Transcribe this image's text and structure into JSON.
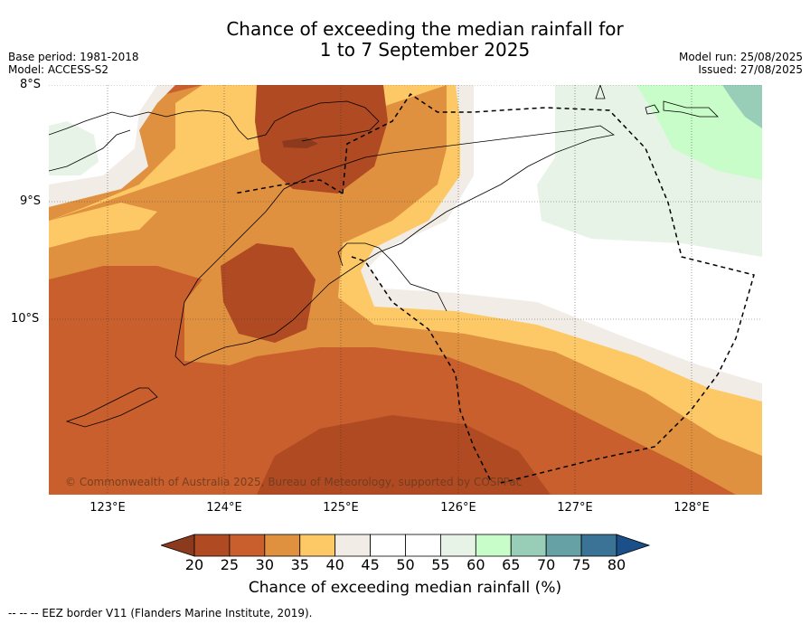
{
  "title_line1": "Chance of exceeding the median rainfall for",
  "title_line2": "1 to 7 September 2025",
  "base_period": "Base period: 1981-2018",
  "model": "Model: ACCESS-S2",
  "model_run": "Model run: 25/08/2025",
  "issued": "Issued: 27/08/2025",
  "lat_labels": [
    "8°S",
    "9°S",
    "10°S"
  ],
  "lon_labels": [
    "123°E",
    "124°E",
    "125°E",
    "126°E",
    "127°E",
    "128°E"
  ],
  "copyright": "© Commonwealth of Australia 2025, Bureau of Meteorology, supported by COSPPac",
  "colorbar": {
    "ticks": [
      "20",
      "25",
      "30",
      "35",
      "40",
      "45",
      "50",
      "55",
      "60",
      "65",
      "70",
      "75",
      "80"
    ],
    "colors": [
      "#8b3a1e",
      "#b04a23",
      "#c95f2c",
      "#e0913f",
      "#fdc966",
      "#f1ece6",
      "#ffffff",
      "#ffffff",
      "#e8f3e8",
      "#c8fcc8",
      "#98cdb8",
      "#65a1a5",
      "#3a7395",
      "#1a4f8a"
    ],
    "label": "Chance of exceeding median rainfall (%)"
  },
  "footer": "--  --  -- EEZ border V11 (Flanders Marine Institute, 2019)."
}
